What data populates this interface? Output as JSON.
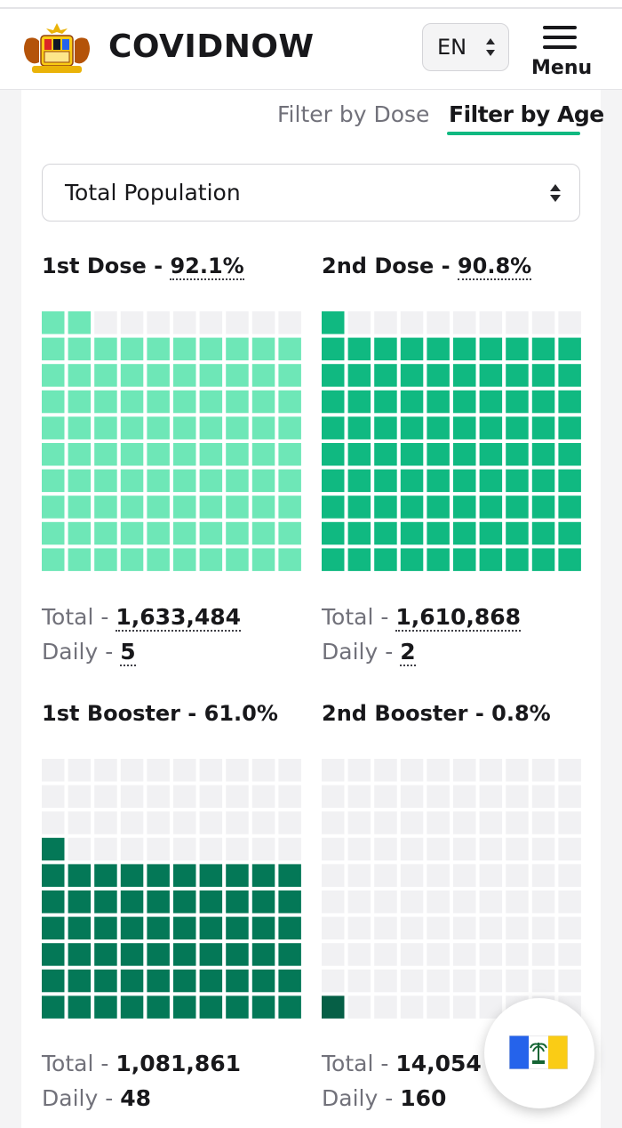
{
  "header": {
    "brand": "COVIDNOW",
    "language": "EN",
    "menu_label": "Menu",
    "logo_icon": "malaysia-coat-of-arms-icon"
  },
  "filters": {
    "tabs": [
      {
        "label": "Filter by Dose",
        "active": false
      },
      {
        "label": "Filter by Age",
        "active": true
      }
    ],
    "population_select": "Total Population"
  },
  "colors": {
    "dose1": "#6ee7b7",
    "dose2": "#10b981",
    "booster1": "#047857",
    "booster2": "#065f46",
    "empty": "#f1f1f3",
    "accent": "#10b981"
  },
  "panels": [
    {
      "title": "1st Dose",
      "percent": "92.1%",
      "percent_value": 92.1,
      "total": "1,633,484",
      "daily": "5",
      "color": "#6ee7b7",
      "underlined": true
    },
    {
      "title": "2nd Dose",
      "percent": "90.8%",
      "percent_value": 90.8,
      "total": "1,610,868",
      "daily": "2",
      "color": "#10b981",
      "underlined": true
    },
    {
      "title": "1st Booster",
      "percent": "61.0%",
      "percent_value": 61.0,
      "total": "1,081,861",
      "daily": "48",
      "color": "#047857",
      "underlined": false
    },
    {
      "title": "2nd Booster",
      "percent": "0.8%",
      "percent_value": 0.8,
      "total": "14,054",
      "daily": "160",
      "color": "#065f46",
      "underlined": false
    }
  ],
  "labels": {
    "total": "Total",
    "daily": "Daily",
    "sep": " - "
  },
  "fab": {
    "icon": "state-flag-icon"
  }
}
